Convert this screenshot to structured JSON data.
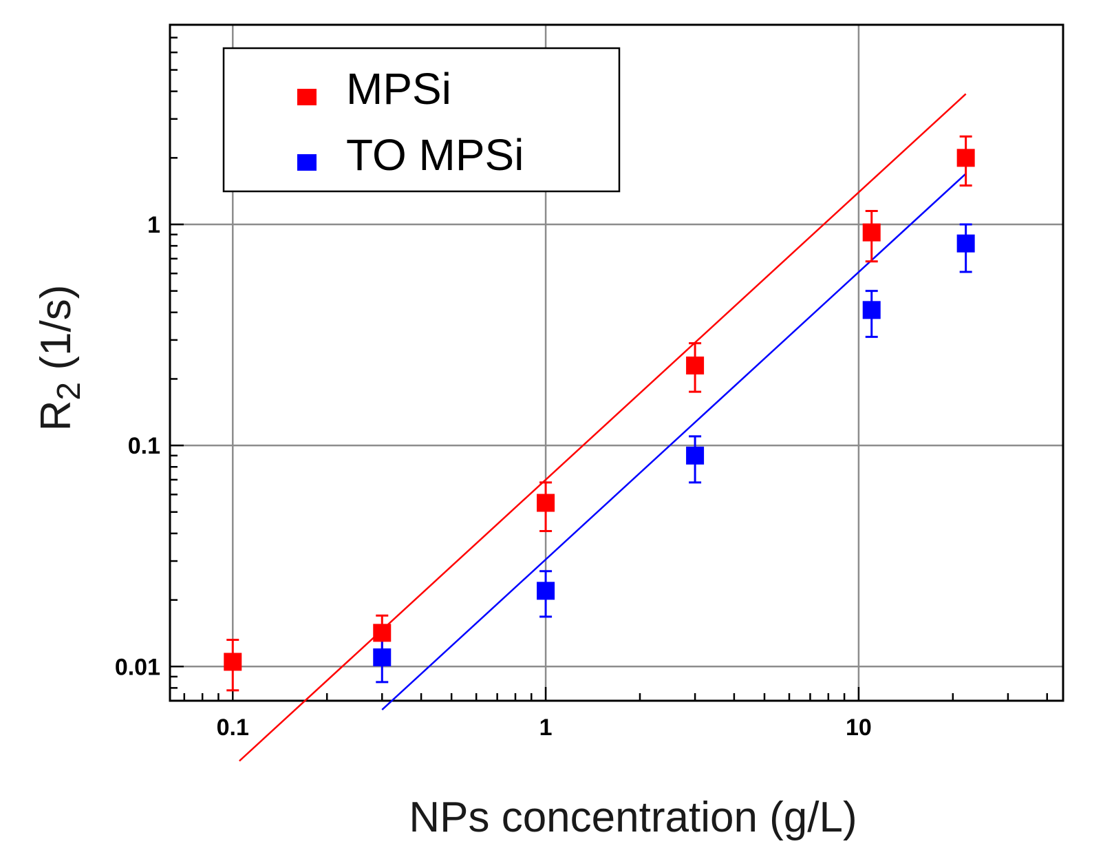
{
  "chart_data": {
    "type": "scatter",
    "title": "",
    "xlabel": "NPs concentration (g/L)",
    "ylabel_main": "R",
    "ylabel_sub": "2",
    "ylabel_rest": " (1/s)",
    "x_scale": "log",
    "y_scale": "log",
    "xlim": [
      0.063,
      45
    ],
    "ylim": [
      0.007,
      8
    ],
    "grid": true,
    "legend_position": "top-left",
    "x_ticks": [
      {
        "value": 0.1,
        "label": "0.1"
      },
      {
        "value": 1,
        "label": "1"
      },
      {
        "value": 10,
        "label": "10"
      }
    ],
    "y_ticks": [
      {
        "value": 0.01,
        "label": "0.01"
      },
      {
        "value": 0.1,
        "label": "0.1"
      },
      {
        "value": 1,
        "label": "1"
      }
    ],
    "series": [
      {
        "name": "MPSi",
        "color": "#ff0000",
        "points": [
          {
            "x": 0.1,
            "y": 0.0105,
            "err_low": 0.0078,
            "err_high": 0.0132
          },
          {
            "x": 0.3,
            "y": 0.0142,
            "err_low": 0.0114,
            "err_high": 0.017
          },
          {
            "x": 1.0,
            "y": 0.055,
            "err_low": 0.041,
            "err_high": 0.068
          },
          {
            "x": 3.0,
            "y": 0.23,
            "err_low": 0.175,
            "err_high": 0.29
          },
          {
            "x": 11.0,
            "y": 0.92,
            "err_low": 0.68,
            "err_high": 1.15
          },
          {
            "x": 22.0,
            "y": 2.0,
            "err_low": 1.5,
            "err_high": 2.5
          }
        ],
        "fit": {
          "x_start": 0.105,
          "x_end": 22.0,
          "y_at_1": 0.07,
          "slope": 1.3
        }
      },
      {
        "name": "TO MPSi",
        "color": "#0000ff",
        "points": [
          {
            "x": 0.3,
            "y": 0.011,
            "err_low": 0.0085,
            "err_high": 0.0135
          },
          {
            "x": 1.0,
            "y": 0.022,
            "err_low": 0.0168,
            "err_high": 0.027
          },
          {
            "x": 3.0,
            "y": 0.09,
            "err_low": 0.068,
            "err_high": 0.11
          },
          {
            "x": 11.0,
            "y": 0.41,
            "err_low": 0.31,
            "err_high": 0.5
          },
          {
            "x": 22.0,
            "y": 0.82,
            "err_low": 0.61,
            "err_high": 1.0
          }
        ],
        "fit": {
          "x_start": 0.3,
          "x_end": 22.0,
          "y_at_1": 0.0305,
          "slope": 1.3
        }
      }
    ]
  }
}
